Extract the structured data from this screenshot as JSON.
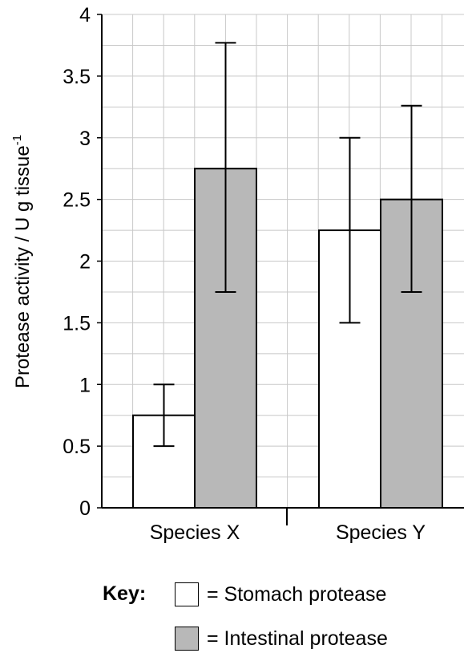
{
  "chart_data": {
    "type": "bar",
    "categories": [
      "Species X",
      "Species Y"
    ],
    "series": [
      {
        "name": "Stomach protease",
        "values": [
          0.75,
          2.25
        ],
        "error_low": [
          0.5,
          1.5
        ],
        "error_high": [
          1.0,
          3.0
        ],
        "color": "#ffffff"
      },
      {
        "name": "Intestinal protease",
        "values": [
          2.75,
          2.5
        ],
        "error_low": [
          1.75,
          1.75
        ],
        "error_high": [
          3.77,
          3.26
        ],
        "color": "#b8b8b8"
      }
    ],
    "ylabel": "Protease activity / U g tissue",
    "ylabel_superscript": "-1",
    "ylim": [
      0,
      4
    ],
    "yticks": [
      "0",
      "0.5",
      "1",
      "1.5",
      "2",
      "2.5",
      "3",
      "3.5",
      "4"
    ],
    "grid": true
  },
  "key": {
    "title": "Key:",
    "items": [
      {
        "label": "= Stomach protease",
        "color": "#ffffff"
      },
      {
        "label": "= Intestinal protease",
        "color": "#b8b8b8"
      }
    ]
  }
}
